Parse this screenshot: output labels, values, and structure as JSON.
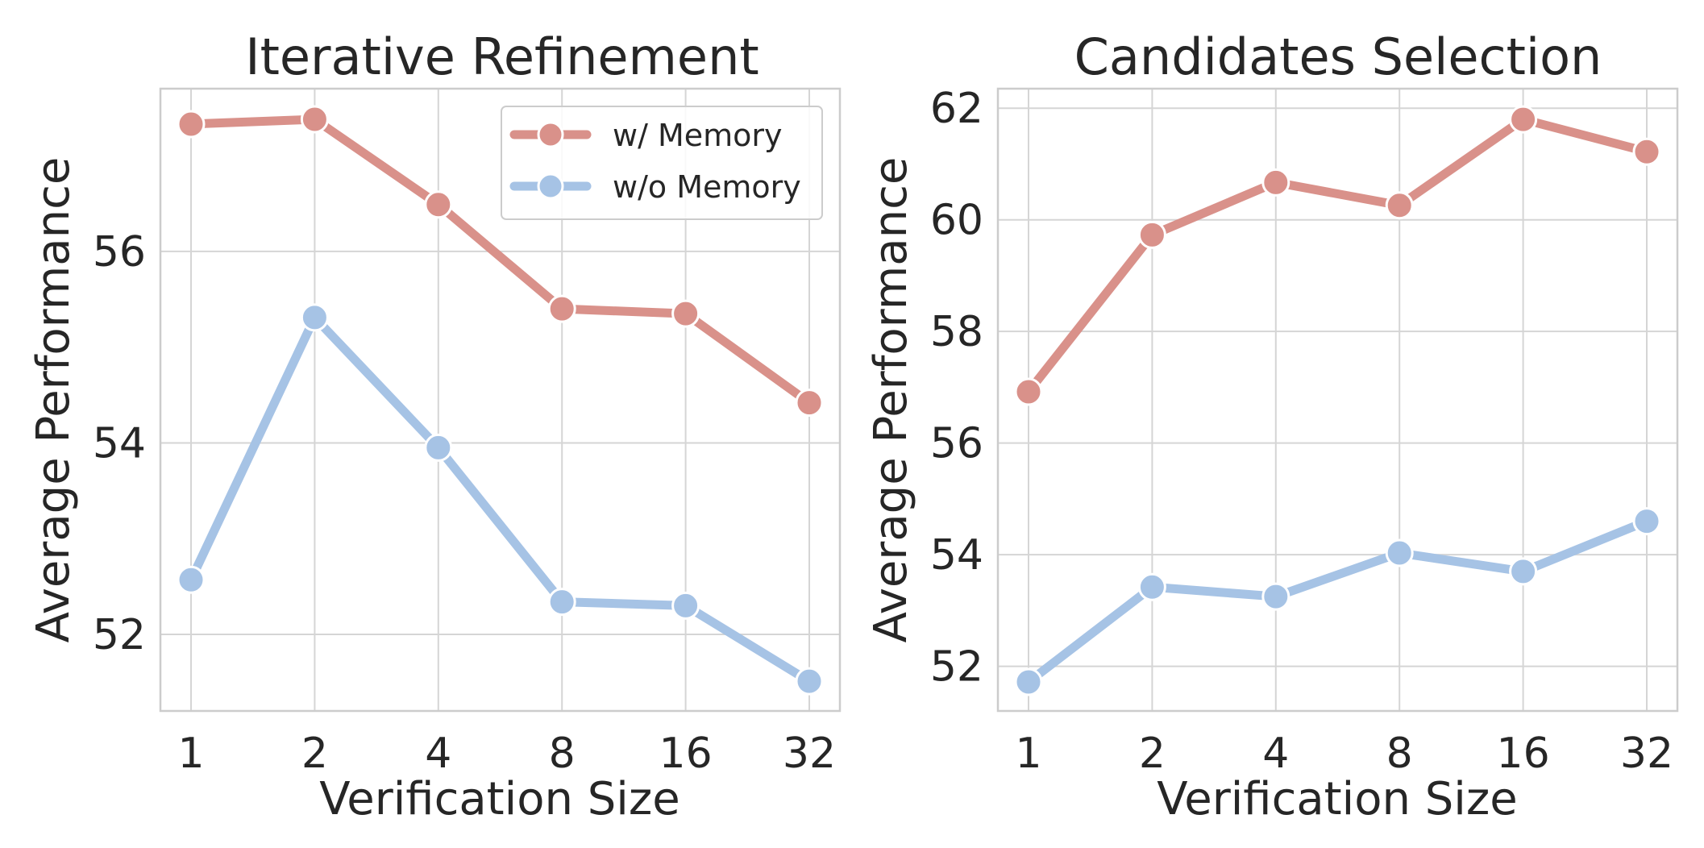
{
  "chart_data": [
    {
      "type": "line",
      "title": "Iterative Refinement",
      "xlabel": "Verification Size",
      "ylabel": "Average Performance",
      "categories": [
        "1",
        "2",
        "4",
        "8",
        "16",
        "32"
      ],
      "ylim": [
        51.2,
        57.7
      ],
      "yticks": [
        52,
        54,
        56
      ],
      "grid": true,
      "legend": "upper right",
      "series": [
        {
          "name": "w/ Memory",
          "color": "#d9918a",
          "values": [
            57.33,
            57.38,
            56.49,
            55.4,
            55.35,
            54.42
          ]
        },
        {
          "name": "w/o Memory",
          "color": "#a6c3e5",
          "values": [
            52.57,
            55.31,
            53.95,
            52.34,
            52.3,
            51.51
          ]
        }
      ]
    },
    {
      "type": "line",
      "title": "Candidates Selection",
      "xlabel": "Verification Size",
      "ylabel": "Average Performance",
      "categories": [
        "1",
        "2",
        "4",
        "8",
        "16",
        "32"
      ],
      "ylim": [
        51.2,
        62.35
      ],
      "yticks": [
        52,
        54,
        56,
        58,
        60,
        62
      ],
      "grid": true,
      "series": [
        {
          "name": "w/ Memory",
          "color": "#d9918a",
          "values": [
            56.92,
            59.73,
            60.67,
            60.26,
            61.8,
            61.22
          ]
        },
        {
          "name": "w/o Memory",
          "color": "#a6c3e5",
          "values": [
            51.72,
            53.42,
            53.25,
            54.03,
            53.7,
            54.6
          ]
        }
      ]
    }
  ]
}
